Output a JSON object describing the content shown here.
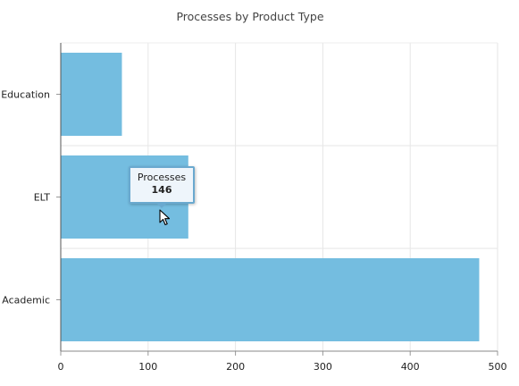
{
  "chart_data": {
    "type": "bar",
    "orientation": "horizontal",
    "title": "Processes by Product Type",
    "categories": [
      "Education",
      "ELT",
      "Academic"
    ],
    "series": [
      {
        "name": "Processes",
        "values": [
          70,
          146,
          479
        ]
      }
    ],
    "xlim": [
      0,
      500
    ],
    "x_ticks": [
      0,
      100,
      200,
      300,
      400,
      500
    ],
    "grid": true,
    "bar_color": "#74bde0"
  },
  "tooltip": {
    "series_name": "Processes",
    "value": "146"
  }
}
